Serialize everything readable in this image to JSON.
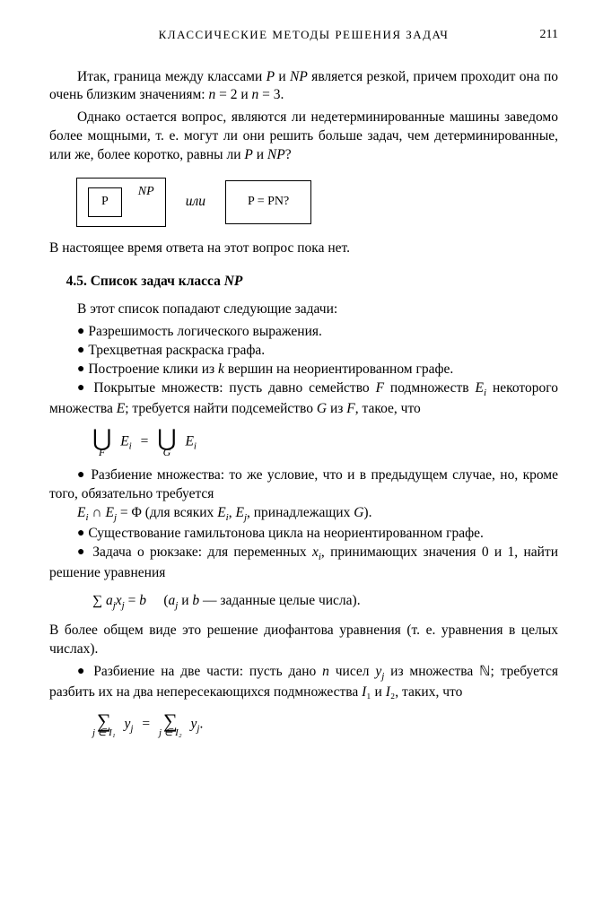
{
  "header": {
    "title": "КЛАССИЧЕСКИЕ МЕТОДЫ РЕШЕНИЯ ЗАДАЧ",
    "pagenum": "211"
  },
  "p1": "Итак, граница между классами P и NP является резкой, причем проходит она по очень близким значениям: n = 2 и n = 3.",
  "p2": "Однако остается вопрос, являются ли недетерминированные машины заведомо более мощными, т. е. могут ли они решить больше задач, чем детерминированные, или же, более коротко, равны ли P и NP?",
  "diagram": {
    "P": "P",
    "NP": "NP",
    "ili": "или",
    "eq": "P = PN?"
  },
  "p3": "В настоящее время ответа на этот вопрос пока нет.",
  "section": "4.5. Список задач класса NP",
  "intro": "В этот список попадают следующие задачи:",
  "bullets": {
    "b1": "Разрешимость логического выражения.",
    "b2": "Трехцветная раскраска графа.",
    "b3": "Построение клики из k вершин на неориентированном графе.",
    "b4a": "Покрытые множеств: пусть давно семейство F подмножеств E",
    "b4b": " некоторого множества E; требуется найти подсемейство G из F, такое, что",
    "b5": "Разбиение множества: то же условие, что и в предыдущем случае, но, кроме того, обязательно требуется",
    "b5eq_left": "E",
    "b5eq_mid": " ∩ E",
    "b5eq_right": " = Φ (для всяких E",
    "b5eq_tail": ", принадлежащих G).",
    "b6": "Существование гамильтонова цикла на неориентированном графе.",
    "b7": "Задача о рюкзаке: для переменных x",
    "b7b": ", принимающих значения 0 и 1, найти решение уравнения",
    "b7note": "(a",
    "b7note2": " и b — заданные целые числа).",
    "p_after7": "В более общем виде это решение диофантова уравнения (т. е. уравнения в целых числах).",
    "b8a": "Разбиение на две части: пусть дано n чисел y",
    "b8b": " из множества ℕ; требуется разбить их на два непересекающихся подмножества I₁ и I₂, таких, что"
  },
  "eq1": {
    "sym": "⋃",
    "sub1": "F",
    "sub2": "G",
    "E": "E",
    "i": "i",
    "eq": "="
  },
  "eq2": {
    "sum": "∑",
    "a": "a",
    "x": "x",
    "j": "j",
    "eq": " = b"
  },
  "eq3": {
    "sum": "∑",
    "sub1": "j ∈ I₁",
    "sub2": "j ∈ I₂",
    "y": "y",
    "j": "j",
    "eq": "=",
    "dot": "."
  }
}
